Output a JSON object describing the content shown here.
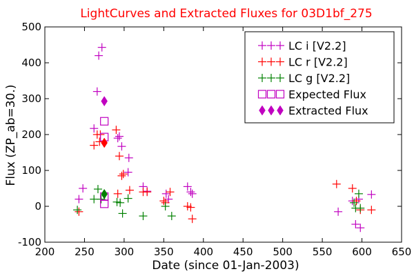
{
  "chart_data": {
    "type": "scatter",
    "title": "LightCurves and Extracted Fluxes for 03D1bf_275",
    "xlabel": "Date (since 01-Jan-2003)",
    "ylabel": "Flux (ZP_ab=30.)",
    "xlim": [
      200,
      650
    ],
    "ylim": [
      -100,
      500
    ],
    "xticks": [
      "200",
      "250",
      "300",
      "350",
      "400",
      "450",
      "500",
      "550",
      "600",
      "650"
    ],
    "yticks": [
      "-100",
      "0",
      "100",
      "200",
      "300",
      "400",
      "500"
    ],
    "grid": false,
    "legend_position": "top-right",
    "series": [
      {
        "name": "LC i [V2.2]",
        "color": "#c000c0",
        "marker": "plus",
        "x": [
          243,
          248,
          262,
          266,
          268,
          272,
          292,
          294,
          297,
          305,
          306,
          324,
          329,
          353,
          356,
          380,
          384,
          386,
          570,
          588,
          592,
          596,
          598,
          612
        ],
        "y": [
          20,
          50,
          217,
          320,
          420,
          443,
          190,
          195,
          167,
          95,
          135,
          55,
          42,
          35,
          20,
          55,
          40,
          35,
          -15,
          15,
          -50,
          20,
          -60,
          33
        ]
      },
      {
        "name": "LC r [V2.2]",
        "color": "#ff0000",
        "marker": "plus",
        "x": [
          243,
          262,
          266,
          269,
          270,
          290,
          292,
          294,
          297,
          299,
          307,
          324,
          329,
          350,
          352,
          358,
          380,
          384,
          386,
          568,
          588,
          593,
          598,
          612
        ],
        "y": [
          -15,
          170,
          200,
          180,
          200,
          213,
          35,
          140,
          85,
          90,
          45,
          40,
          40,
          15,
          10,
          40,
          0,
          -3,
          -35,
          62,
          50,
          15,
          -10,
          -10
        ]
      },
      {
        "name": "LC g [V2.2]",
        "color": "#008000",
        "marker": "plus",
        "x": [
          241,
          262,
          267,
          271,
          291,
          295,
          298,
          305,
          324,
          352,
          360,
          590,
          592,
          596,
          598
        ],
        "y": [
          -10,
          20,
          48,
          20,
          12,
          10,
          -20,
          22,
          -27,
          0,
          -27,
          10,
          -5,
          35,
          -5
        ]
      },
      {
        "name": "Expected Flux",
        "color": "#c000c0",
        "marker": "square-open",
        "x": [
          275,
          275,
          275,
          275
        ],
        "y": [
          237,
          193,
          27,
          7
        ]
      },
      {
        "name": "Extracted Flux",
        "color": "#c000c0",
        "marker": "diamond",
        "x": [
          275,
          275,
          275
        ],
        "y": [
          293,
          177,
          34
        ],
        "colors": [
          "#c000c0",
          "#ff0000",
          "#008000"
        ]
      }
    ]
  }
}
